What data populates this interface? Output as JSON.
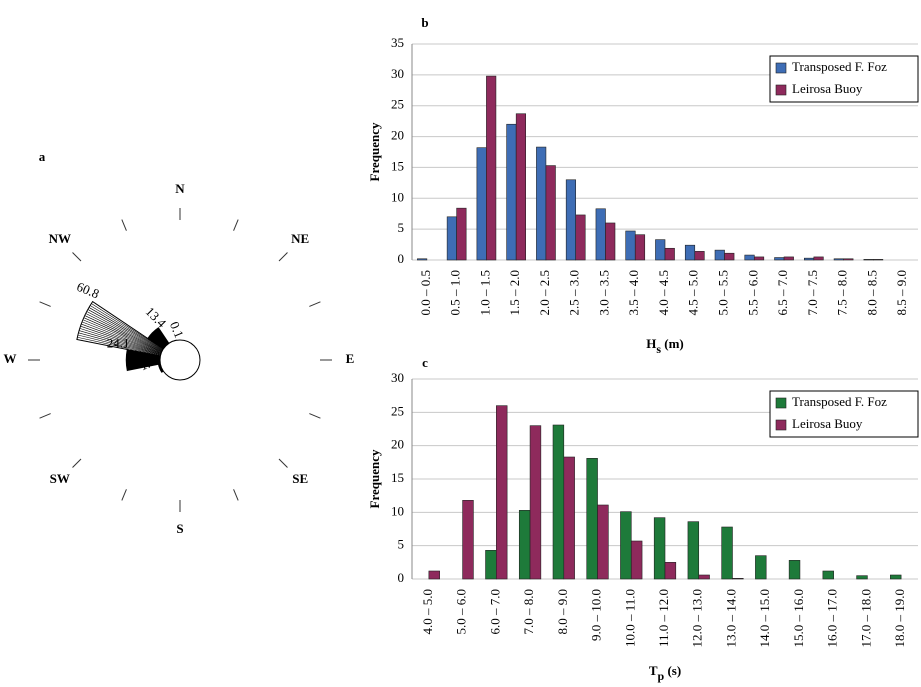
{
  "chart_data": [
    {
      "type": "rose",
      "panel_label": "a",
      "directions": [
        "N",
        "NE",
        "E",
        "SE",
        "S",
        "SW",
        "W",
        "NW"
      ],
      "angles": [
        292.5,
        315,
        337.5,
        270,
        247.5
      ],
      "values": [
        60.8,
        13.4,
        0.1,
        24.1,
        1.4
      ],
      "colors": [
        "#ffffff",
        "#000000",
        "#000000",
        "#000000",
        "#000000"
      ]
    },
    {
      "type": "bar",
      "panel_label": "b",
      "ylabel": "Frequency",
      "xlabel_parts": [
        "H",
        "s",
        " (m)"
      ],
      "categories": [
        "0.0 – 0.5",
        "0.5 – 1.0",
        "1.0 – 1.5",
        "1.5 – 2.0",
        "2.0 – 2.5",
        "2.5 – 3.0",
        "3.0 – 3.5",
        "3.5 – 4.0",
        "4.0 – 4.5",
        "4.5 – 5.0",
        "5.0 – 5.5",
        "5.5 – 6.0",
        "6.5 – 7.0",
        "7.0 – 7.5",
        "7.5 – 8.0",
        "8.0 – 8.5",
        "8.5 – 9.0"
      ],
      "series": [
        {
          "name": "Transposed F. Foz",
          "color": "#3e6db5",
          "values": [
            0.2,
            7,
            18.2,
            22,
            18.3,
            13,
            8.3,
            4.7,
            3.3,
            2.4,
            1.6,
            0.8,
            0.4,
            0.3,
            0.2,
            0.1,
            0
          ]
        },
        {
          "name": "Leirosa Buoy",
          "color": "#8e2a5c",
          "values": [
            0,
            8.4,
            29.8,
            23.7,
            15.3,
            7.3,
            6,
            4.1,
            1.9,
            1.4,
            1.1,
            0.5,
            0.5,
            0.5,
            0.2,
            0.1,
            0
          ]
        }
      ],
      "ylim": [
        0,
        35
      ],
      "yticks": [
        0,
        5,
        10,
        15,
        20,
        25,
        30,
        35
      ],
      "grid": true,
      "legend": "upper right"
    },
    {
      "type": "bar",
      "panel_label": "c",
      "ylabel": "Frequency",
      "xlabel_parts": [
        "T",
        "p",
        " (s)"
      ],
      "categories": [
        "4.0 – 5.0",
        "5.0 – 6.0",
        "6.0 – 7.0",
        "7.0 – 8.0",
        "8.0 – 9.0",
        "9.0 – 10.0",
        "10.0 – 11.0",
        "11.0 – 12.0",
        "12.0 – 13.0",
        "13.0 – 14.0",
        "14.0 – 15.0",
        "15.0 – 16.0",
        "16.0 – 17.0",
        "17.0 – 18.0",
        "18.0 – 19.0"
      ],
      "series": [
        {
          "name": "Transposed F. Foz",
          "color": "#1e7a3a",
          "values": [
            0,
            0,
            4.3,
            10.3,
            23.1,
            18.1,
            10.1,
            9.2,
            8.6,
            7.8,
            3.5,
            2.8,
            1.2,
            0.5,
            0.6
          ]
        },
        {
          "name": "Leirosa Buoy",
          "color": "#8e2a5c",
          "values": [
            1.2,
            11.8,
            26,
            23,
            18.3,
            11.1,
            5.7,
            2.5,
            0.6,
            0.1,
            0,
            0,
            0,
            0,
            0
          ]
        }
      ],
      "ylim": [
        0,
        30
      ],
      "yticks": [
        0,
        5,
        10,
        15,
        20,
        25,
        30
      ],
      "grid": true,
      "legend": "upper right"
    }
  ]
}
